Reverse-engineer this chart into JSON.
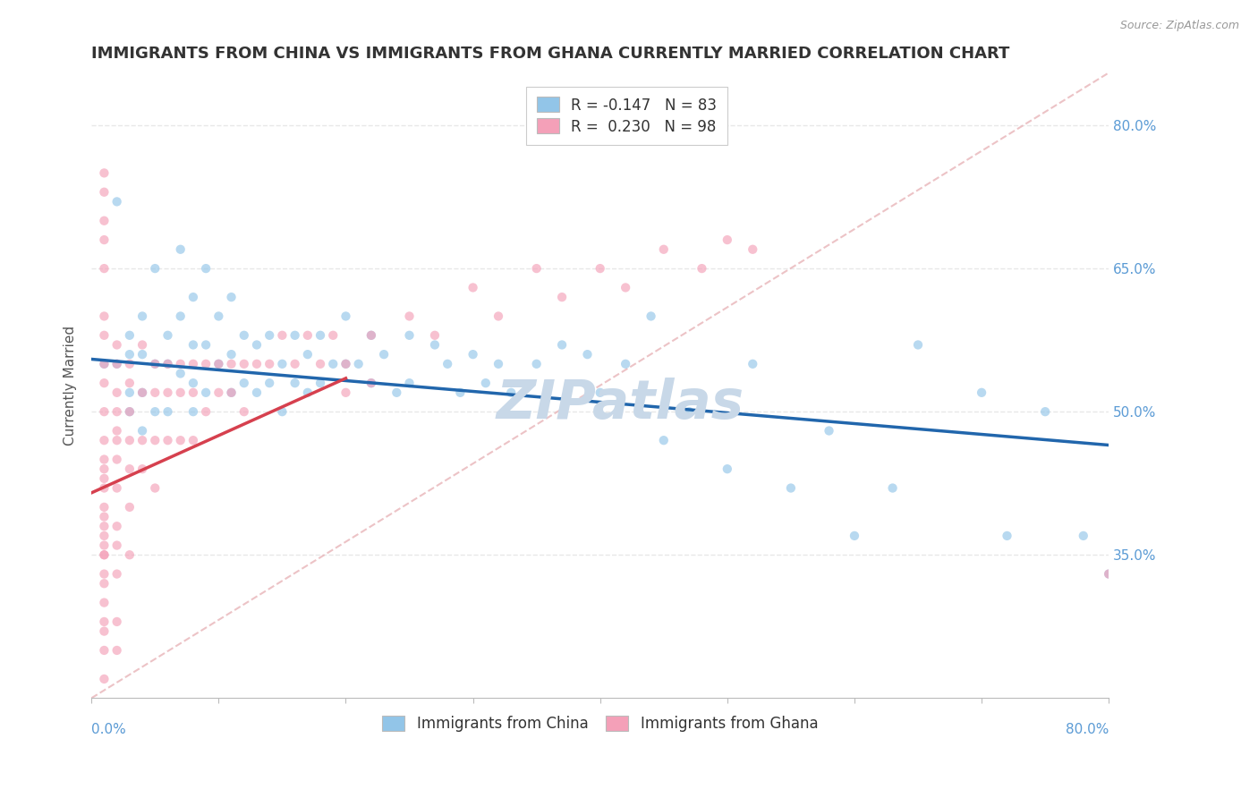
{
  "title": "IMMIGRANTS FROM CHINA VS IMMIGRANTS FROM GHANA CURRENTLY MARRIED CORRELATION CHART",
  "source": "Source: ZipAtlas.com",
  "ylabel": "Currently Married",
  "ytick_values": [
    0.35,
    0.5,
    0.65,
    0.8
  ],
  "xlim": [
    0.0,
    0.8
  ],
  "ylim": [
    0.2,
    0.855
  ],
  "legend_china": "R = -0.147   N = 83",
  "legend_ghana": "R =  0.230   N = 98",
  "china_color": "#92c5e8",
  "ghana_color": "#f4a0b8",
  "china_line_color": "#2166ac",
  "ghana_line_color": "#d6404e",
  "ref_line_color": "#e8b4b8",
  "background_color": "#ffffff",
  "grid_color": "#e8e8e8",
  "watermark_text": "ZIPatlas",
  "watermark_color": "#c8d8e8",
  "scatter_size": 55,
  "scatter_alpha": 0.65,
  "title_fontsize": 13,
  "axis_label_fontsize": 11,
  "tick_fontsize": 11,
  "legend_fontsize": 12,
  "china_line_x": [
    0.0,
    0.8
  ],
  "china_line_y": [
    0.555,
    0.465
  ],
  "ghana_line_x": [
    0.0,
    0.2
  ],
  "ghana_line_y": [
    0.415,
    0.535
  ],
  "ref_line_x": [
    0.0,
    0.8
  ],
  "ref_line_y": [
    0.2,
    0.855
  ],
  "china_scatter_x": [
    0.01,
    0.02,
    0.02,
    0.03,
    0.03,
    0.03,
    0.03,
    0.04,
    0.04,
    0.04,
    0.04,
    0.05,
    0.05,
    0.05,
    0.06,
    0.06,
    0.06,
    0.07,
    0.07,
    0.07,
    0.08,
    0.08,
    0.08,
    0.08,
    0.09,
    0.09,
    0.09,
    0.1,
    0.1,
    0.11,
    0.11,
    0.11,
    0.12,
    0.12,
    0.13,
    0.13,
    0.14,
    0.14,
    0.15,
    0.15,
    0.16,
    0.16,
    0.17,
    0.17,
    0.18,
    0.18,
    0.19,
    0.2,
    0.2,
    0.21,
    0.22,
    0.22,
    0.23,
    0.24,
    0.25,
    0.25,
    0.27,
    0.28,
    0.29,
    0.3,
    0.31,
    0.32,
    0.33,
    0.35,
    0.37,
    0.39,
    0.4,
    0.42,
    0.44,
    0.45,
    0.47,
    0.5,
    0.52,
    0.55,
    0.58,
    0.6,
    0.63,
    0.65,
    0.7,
    0.72,
    0.75,
    0.78,
    0.8
  ],
  "china_scatter_y": [
    0.55,
    0.72,
    0.55,
    0.56,
    0.52,
    0.58,
    0.5,
    0.6,
    0.56,
    0.52,
    0.48,
    0.65,
    0.55,
    0.5,
    0.58,
    0.55,
    0.5,
    0.67,
    0.6,
    0.54,
    0.62,
    0.57,
    0.53,
    0.5,
    0.65,
    0.57,
    0.52,
    0.6,
    0.55,
    0.62,
    0.56,
    0.52,
    0.58,
    0.53,
    0.57,
    0.52,
    0.58,
    0.53,
    0.55,
    0.5,
    0.58,
    0.53,
    0.56,
    0.52,
    0.58,
    0.53,
    0.55,
    0.6,
    0.55,
    0.55,
    0.58,
    0.53,
    0.56,
    0.52,
    0.58,
    0.53,
    0.57,
    0.55,
    0.52,
    0.56,
    0.53,
    0.55,
    0.52,
    0.55,
    0.57,
    0.56,
    0.52,
    0.55,
    0.6,
    0.47,
    0.5,
    0.44,
    0.55,
    0.42,
    0.48,
    0.37,
    0.42,
    0.57,
    0.52,
    0.37,
    0.5,
    0.37,
    0.33
  ],
  "ghana_scatter_x": [
    0.01,
    0.01,
    0.01,
    0.01,
    0.01,
    0.01,
    0.01,
    0.01,
    0.01,
    0.01,
    0.01,
    0.01,
    0.01,
    0.01,
    0.01,
    0.01,
    0.01,
    0.01,
    0.01,
    0.01,
    0.01,
    0.01,
    0.01,
    0.01,
    0.01,
    0.01,
    0.01,
    0.01,
    0.01,
    0.02,
    0.02,
    0.02,
    0.02,
    0.02,
    0.02,
    0.02,
    0.02,
    0.02,
    0.02,
    0.02,
    0.02,
    0.02,
    0.03,
    0.03,
    0.03,
    0.03,
    0.03,
    0.03,
    0.03,
    0.04,
    0.04,
    0.04,
    0.04,
    0.05,
    0.05,
    0.05,
    0.05,
    0.06,
    0.06,
    0.06,
    0.07,
    0.07,
    0.07,
    0.08,
    0.08,
    0.08,
    0.09,
    0.09,
    0.1,
    0.1,
    0.11,
    0.11,
    0.12,
    0.12,
    0.13,
    0.14,
    0.15,
    0.16,
    0.17,
    0.18,
    0.19,
    0.2,
    0.2,
    0.22,
    0.22,
    0.25,
    0.27,
    0.3,
    0.32,
    0.35,
    0.37,
    0.4,
    0.42,
    0.45,
    0.48,
    0.5,
    0.52,
    0.8
  ],
  "ghana_scatter_y": [
    0.22,
    0.25,
    0.28,
    0.3,
    0.32,
    0.35,
    0.37,
    0.39,
    0.42,
    0.44,
    0.47,
    0.5,
    0.53,
    0.55,
    0.58,
    0.45,
    0.4,
    0.35,
    0.6,
    0.65,
    0.68,
    0.7,
    0.73,
    0.75,
    0.27,
    0.33,
    0.36,
    0.38,
    0.43,
    0.45,
    0.48,
    0.5,
    0.52,
    0.55,
    0.38,
    0.42,
    0.33,
    0.36,
    0.28,
    0.57,
    0.47,
    0.25,
    0.5,
    0.53,
    0.47,
    0.44,
    0.4,
    0.55,
    0.35,
    0.52,
    0.57,
    0.47,
    0.44,
    0.52,
    0.55,
    0.47,
    0.42,
    0.52,
    0.55,
    0.47,
    0.55,
    0.52,
    0.47,
    0.55,
    0.52,
    0.47,
    0.55,
    0.5,
    0.55,
    0.52,
    0.55,
    0.52,
    0.55,
    0.5,
    0.55,
    0.55,
    0.58,
    0.55,
    0.58,
    0.55,
    0.58,
    0.55,
    0.52,
    0.58,
    0.53,
    0.6,
    0.58,
    0.63,
    0.6,
    0.65,
    0.62,
    0.65,
    0.63,
    0.67,
    0.65,
    0.68,
    0.67,
    0.33
  ]
}
